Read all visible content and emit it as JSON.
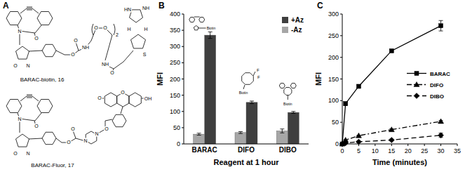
{
  "panels": [
    "A",
    "B",
    "C"
  ],
  "structures": [
    {
      "label": "BARAC-biotin, 16",
      "atoms": [
        "N",
        "O",
        "O",
        "N",
        "O",
        "O",
        "NH",
        "O",
        "O",
        "2",
        "NH",
        "O",
        "H",
        "H",
        "HN",
        "NH",
        "S"
      ]
    },
    {
      "label": "BARAC-Fluor, 17",
      "atoms": [
        "N",
        "O",
        "O",
        "N",
        "O",
        "O",
        "N",
        "N",
        "O",
        "O",
        "O",
        "OH"
      ]
    }
  ],
  "chart_data": [
    {
      "type": "bar",
      "x_label": "Reagent at 1 hour",
      "y_label": "MFI",
      "categories": [
        "BARAC",
        "DIFO",
        "DIBO"
      ],
      "series": [
        {
          "name": "+Az",
          "color": "#3f3f3f",
          "values": [
            335,
            128,
            97
          ],
          "errors": [
            10,
            4,
            3
          ]
        },
        {
          "name": "-Az",
          "color": "#a6a6a6",
          "values": [
            30,
            35,
            40
          ],
          "errors": [
            3,
            3,
            6
          ]
        }
      ],
      "annotations": [
        "Biotin",
        "F",
        "F",
        "Biotin",
        "Biotin"
      ],
      "ylim": [
        0,
        400
      ],
      "yticks": [
        0,
        50,
        100,
        150,
        200,
        250,
        300,
        350,
        400
      ],
      "grid": false,
      "legend": "upper right"
    },
    {
      "type": "line",
      "x_label": "Time (minutes)",
      "y_label": "MFI",
      "x": [
        0,
        1,
        5,
        15,
        30
      ],
      "series": [
        {
          "name": "BARAC",
          "color": "#000000",
          "marker": "square",
          "line_style": "solid",
          "values": [
            0,
            93,
            133,
            215,
            273
          ],
          "errors": [
            0,
            4,
            3,
            3,
            12
          ]
        },
        {
          "name": "DIFO",
          "color": "#000000",
          "marker": "triangle",
          "line_style": "dashdot",
          "values": [
            0,
            9,
            19,
            33,
            52
          ],
          "errors": [
            0,
            1,
            1,
            2,
            2
          ]
        },
        {
          "name": "DIBO",
          "color": "#000000",
          "marker": "diamond",
          "line_style": "dashed",
          "values": [
            0,
            2,
            5,
            9,
            20
          ],
          "errors": [
            0,
            1,
            1,
            2,
            5
          ]
        }
      ],
      "xlim": [
        0,
        35
      ],
      "xticks": [
        0,
        5,
        10,
        15,
        20,
        25,
        30,
        35
      ],
      "ylim": [
        0,
        300
      ],
      "yticks": [
        0,
        50,
        100,
        150,
        200,
        250,
        300
      ],
      "grid": false,
      "legend": "right"
    }
  ]
}
